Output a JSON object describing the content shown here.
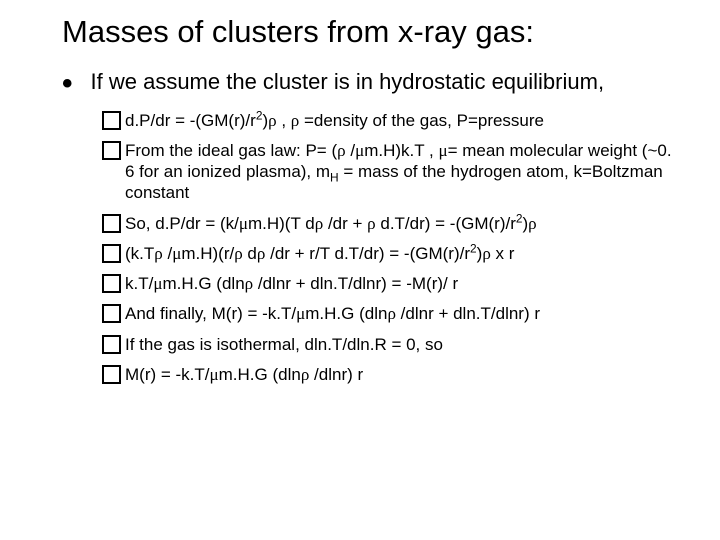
{
  "title": "Masses of clusters from x-ray gas:",
  "intro": "If we assume the cluster is in hydrostatic equilibrium,",
  "items": [
    "d.P/dr = -(GM(r)/r<sup>2</sup>)<span class='sym'>ρ</span> , <span class='sym'>ρ</span> =density of the gas, P=pressure",
    "From the ideal gas law: P= (<span class='sym'>ρ</span> /<span class='sym'>μ</span>m.H)k.T , <span class='sym'>μ</span>= mean molecular weight (~0. 6 for an ionized plasma), m<sub>H</sub> = mass of the hydrogen atom, k=Boltzman constant",
    "So, d.P/dr = (k/<span class='sym'>μ</span>m.H)(T d<span class='sym'>ρ</span> /dr + <span class='sym'>ρ</span> d.T/dr) = -(GM(r)/r<sup>2</sup>)<span class='sym'>ρ</span>",
    "(k.T<span class='sym'>ρ</span> /<span class='sym'>μ</span>m.H)(r/<span class='sym'>ρ</span> d<span class='sym'>ρ</span> /dr + r/T d.T/dr) = -(GM(r)/r<sup>2</sup>)<span class='sym'>ρ</span> x r",
    "k.T/<span class='sym'>μ</span>m.H.G (dln<span class='sym'>ρ</span> /dlnr + dln.T/dlnr) = -M(r)/ r",
    "And finally, M(r) = -k.T/<span class='sym'>μ</span>m.H.G (dln<span class='sym'>ρ</span> /dlnr + dln.T/dlnr) r",
    "If the gas is isothermal, dln.T/dln.R = 0, so",
    "M(r) = -k.T/<span class='sym'>μ</span>m.H.G (dln<span class='sym'>ρ</span> /dlnr) r"
  ]
}
